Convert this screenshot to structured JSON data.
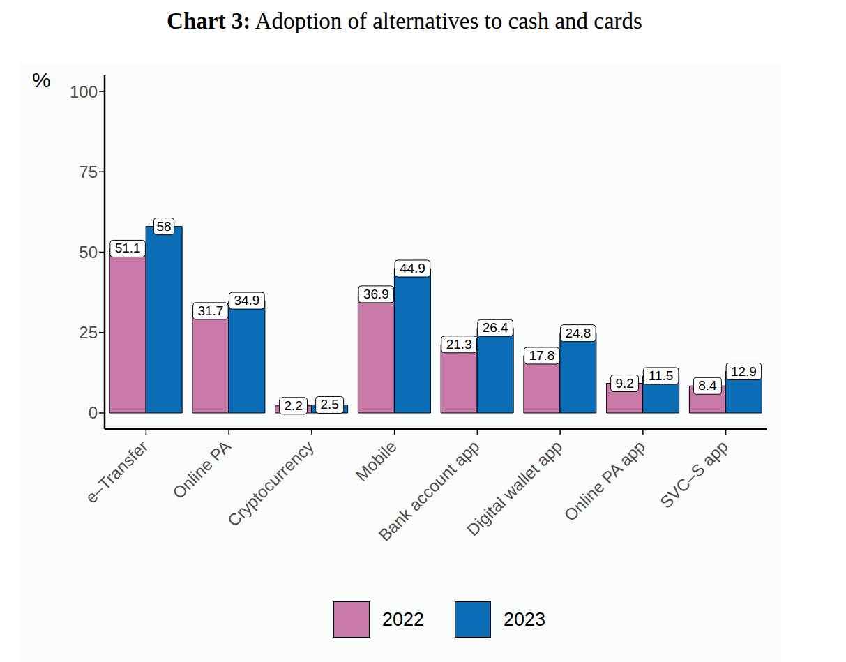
{
  "chart_data": {
    "type": "bar",
    "title": "Chart 3: Adoption of alternatives to cash and cards",
    "y_label": "%",
    "categories": [
      "e–Transfer",
      "Online PA",
      "Cryptocurrency",
      "Mobile",
      "Bank account app",
      "Digital wallet app",
      "Online PA app",
      "SVC–S app"
    ],
    "series": [
      {
        "name": "2022",
        "color": "#c879a8",
        "values": [
          51.1,
          31.7,
          2.2,
          36.9,
          21.3,
          17.8,
          9.2,
          8.4
        ]
      },
      {
        "name": "2023",
        "color": "#0a6db5",
        "values": [
          58,
          34.9,
          2.5,
          44.9,
          26.4,
          24.8,
          11.5,
          12.9
        ]
      }
    ],
    "ylim": [
      -5,
      105
    ],
    "yticks": [
      0,
      25,
      50,
      75,
      100
    ],
    "grid": false,
    "legend": "bottom",
    "data_labels": true
  }
}
